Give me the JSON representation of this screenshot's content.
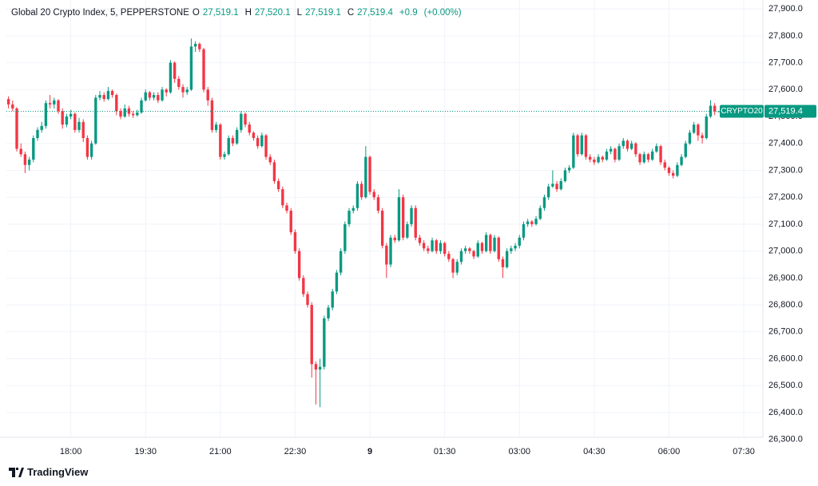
{
  "chart_data": {
    "type": "candlestick",
    "title": "Global 20 Crypto Index, 5, PEPPERSTONE",
    "header": [
      {
        "key": "O",
        "value": 27519.1,
        "label": "27,519.1"
      },
      {
        "key": "H",
        "value": 27520.1,
        "label": "27,520.1"
      },
      {
        "key": "L",
        "value": 27519.1,
        "label": "27,519.1"
      },
      {
        "key": "C",
        "value": 27519.4,
        "label": "27,519.4"
      }
    ],
    "change": {
      "value": 0.9,
      "label": "+0.9"
    },
    "change_pct": {
      "value": 0,
      "label": "(+0.00%)"
    },
    "symbol": "CRYPTO20",
    "last_price": {
      "value": 27519.4,
      "label": "27,519.4"
    },
    "brand": "TradingView",
    "up_color": "#089981",
    "down_color": "#f23645",
    "grid": true,
    "ylim": [
      26308,
      27933
    ],
    "yticks": [
      {
        "value": 27900,
        "label": "27,900.0"
      },
      {
        "value": 27800,
        "label": "27,800.0"
      },
      {
        "value": 27700,
        "label": "27,700.0"
      },
      {
        "value": 27600,
        "label": "27,600.0"
      },
      {
        "value": 27500,
        "label": "27,500.0"
      },
      {
        "value": 27400,
        "label": "27,400.0"
      },
      {
        "value": 27300,
        "label": "27,300.0"
      },
      {
        "value": 27200,
        "label": "27,200.0"
      },
      {
        "value": 27100,
        "label": "27,100.0"
      },
      {
        "value": 27000,
        "label": "27,000.0"
      },
      {
        "value": 26900,
        "label": "26,900.0"
      },
      {
        "value": 26800,
        "label": "26,800.0"
      },
      {
        "value": 26700,
        "label": "26,700.0"
      },
      {
        "value": 26600,
        "label": "26,600.0"
      },
      {
        "value": 26500,
        "label": "26,500.0"
      },
      {
        "value": 26400,
        "label": "26,400.0"
      },
      {
        "value": 26300,
        "label": "26,300.0"
      }
    ],
    "xlim": [
      -0.5,
      181.6
    ],
    "xticks": [
      {
        "value": 15,
        "label": "18:00"
      },
      {
        "value": 33,
        "label": "19:30"
      },
      {
        "value": 51,
        "label": "21:00"
      },
      {
        "value": 69,
        "label": "22:30"
      },
      {
        "value": 87,
        "label": "9"
      },
      {
        "value": 105,
        "label": "01:30"
      },
      {
        "value": 123,
        "label": "03:00"
      },
      {
        "value": 141,
        "label": "04:30"
      },
      {
        "value": 159,
        "label": "06:00"
      },
      {
        "value": 177,
        "label": "07:30"
      }
    ],
    "ohlc": [
      [
        27565,
        27575,
        27530,
        27545
      ],
      [
        27545,
        27560,
        27520,
        27530
      ],
      [
        27530,
        27535,
        27370,
        27380
      ],
      [
        27380,
        27400,
        27350,
        27360
      ],
      [
        27360,
        27370,
        27290,
        27320
      ],
      [
        27320,
        27350,
        27300,
        27340
      ],
      [
        27340,
        27430,
        27330,
        27420
      ],
      [
        27420,
        27460,
        27410,
        27450
      ],
      [
        27450,
        27480,
        27440,
        27465
      ],
      [
        27465,
        27560,
        27455,
        27550
      ],
      [
        27550,
        27580,
        27530,
        27545
      ],
      [
        27545,
        27570,
        27530,
        27560
      ],
      [
        27560,
        27565,
        27510,
        27520
      ],
      [
        27520,
        27530,
        27455,
        27470
      ],
      [
        27470,
        27510,
        27460,
        27500
      ],
      [
        27500,
        27525,
        27490,
        27510
      ],
      [
        27510,
        27515,
        27440,
        27450
      ],
      [
        27450,
        27495,
        27440,
        27480
      ],
      [
        27480,
        27490,
        27405,
        27420
      ],
      [
        27420,
        27430,
        27340,
        27350
      ],
      [
        27350,
        27410,
        27340,
        27400
      ],
      [
        27400,
        27580,
        27395,
        27570
      ],
      [
        27570,
        27595,
        27560,
        27580
      ],
      [
        27580,
        27590,
        27555,
        27565
      ],
      [
        27565,
        27610,
        27560,
        27595
      ],
      [
        27595,
        27600,
        27570,
        27580
      ],
      [
        27580,
        27585,
        27505,
        27520
      ],
      [
        27520,
        27530,
        27490,
        27500
      ],
      [
        27500,
        27545,
        27495,
        27530
      ],
      [
        27530,
        27540,
        27500,
        27510
      ],
      [
        27510,
        27520,
        27495,
        27505
      ],
      [
        27505,
        27525,
        27500,
        27515
      ],
      [
        27515,
        27570,
        27510,
        27560
      ],
      [
        27560,
        27600,
        27555,
        27590
      ],
      [
        27590,
        27595,
        27560,
        27570
      ],
      [
        27570,
        27590,
        27560,
        27580
      ],
      [
        27580,
        27590,
        27550,
        27560
      ],
      [
        27560,
        27610,
        27555,
        27600
      ],
      [
        27600,
        27605,
        27575,
        27590
      ],
      [
        27590,
        27710,
        27585,
        27700
      ],
      [
        27700,
        27705,
        27625,
        27640
      ],
      [
        27640,
        27650,
        27600,
        27610
      ],
      [
        27610,
        27620,
        27570,
        27590
      ],
      [
        27590,
        27610,
        27580,
        27600
      ],
      [
        27600,
        27790,
        27595,
        27760
      ],
      [
        27760,
        27780,
        27740,
        27770
      ],
      [
        27770,
        27775,
        27740,
        27750
      ],
      [
        27750,
        27755,
        27590,
        27600
      ],
      [
        27600,
        27610,
        27540,
        27560
      ],
      [
        27560,
        27570,
        27440,
        27450
      ],
      [
        27450,
        27480,
        27440,
        27470
      ],
      [
        27470,
        27475,
        27340,
        27350
      ],
      [
        27350,
        27370,
        27340,
        27360
      ],
      [
        27360,
        27430,
        27355,
        27420
      ],
      [
        27420,
        27430,
        27390,
        27400
      ],
      [
        27400,
        27460,
        27395,
        27450
      ],
      [
        27450,
        27520,
        27440,
        27510
      ],
      [
        27510,
        27515,
        27460,
        27470
      ],
      [
        27470,
        27480,
        27430,
        27440
      ],
      [
        27440,
        27445,
        27410,
        27420
      ],
      [
        27420,
        27430,
        27380,
        27390
      ],
      [
        27390,
        27440,
        27385,
        27430
      ],
      [
        27430,
        27435,
        27340,
        27350
      ],
      [
        27350,
        27360,
        27320,
        27330
      ],
      [
        27330,
        27340,
        27250,
        27260
      ],
      [
        27260,
        27270,
        27220,
        27230
      ],
      [
        27230,
        27240,
        27160,
        27170
      ],
      [
        27170,
        27180,
        27140,
        27150
      ],
      [
        27150,
        27160,
        27060,
        27070
      ],
      [
        27070,
        27080,
        26990,
        27000
      ],
      [
        27000,
        27010,
        26890,
        26900
      ],
      [
        26900,
        26910,
        26830,
        26840
      ],
      [
        26840,
        26850,
        26790,
        26800
      ],
      [
        26800,
        26810,
        26530,
        26580
      ],
      [
        26580,
        26590,
        26430,
        26560
      ],
      [
        26560,
        26600,
        26420,
        26570
      ],
      [
        26570,
        26760,
        26560,
        26750
      ],
      [
        26750,
        26800,
        26740,
        26790
      ],
      [
        26790,
        26860,
        26780,
        26850
      ],
      [
        26850,
        26930,
        26840,
        26920
      ],
      [
        26920,
        27010,
        26910,
        27000
      ],
      [
        27000,
        27110,
        26990,
        27100
      ],
      [
        27100,
        27160,
        27090,
        27150
      ],
      [
        27150,
        27170,
        27140,
        27160
      ],
      [
        27160,
        27260,
        27150,
        27250
      ],
      [
        27250,
        27260,
        27190,
        27200
      ],
      [
        27200,
        27390,
        27195,
        27350
      ],
      [
        27350,
        27355,
        27210,
        27220
      ],
      [
        27220,
        27230,
        27190,
        27200
      ],
      [
        27200,
        27210,
        27140,
        27150
      ],
      [
        27150,
        27160,
        27010,
        27020
      ],
      [
        27020,
        27030,
        26900,
        26950
      ],
      [
        26950,
        27060,
        26940,
        27050
      ],
      [
        27050,
        27060,
        27030,
        27040
      ],
      [
        27040,
        27230,
        27035,
        27200
      ],
      [
        27200,
        27210,
        27040,
        27050
      ],
      [
        27050,
        27110,
        27045,
        27100
      ],
      [
        27100,
        27170,
        27090,
        27160
      ],
      [
        27160,
        27170,
        27040,
        27050
      ],
      [
        27050,
        27060,
        27020,
        27030
      ],
      [
        27030,
        27040,
        27000,
        27010
      ],
      [
        27010,
        27020,
        26990,
        27000
      ],
      [
        27000,
        27050,
        26995,
        27040
      ],
      [
        27040,
        27045,
        26990,
        27000
      ],
      [
        27000,
        27040,
        26990,
        27030
      ],
      [
        27030,
        27035,
        26980,
        26990
      ],
      [
        26990,
        27000,
        26960,
        26970
      ],
      [
        26970,
        26975,
        26900,
        26920
      ],
      [
        26920,
        26970,
        26910,
        26960
      ],
      [
        26960,
        27010,
        26950,
        27000
      ],
      [
        27000,
        27020,
        26990,
        27010
      ],
      [
        27010,
        27015,
        26990,
        27000
      ],
      [
        27000,
        27005,
        26970,
        26980
      ],
      [
        26980,
        27040,
        26975,
        27030
      ],
      [
        27030,
        27035,
        26990,
        27000
      ],
      [
        27000,
        27070,
        26995,
        27060
      ],
      [
        27060,
        27065,
        26990,
        27000
      ],
      [
        27000,
        27060,
        26995,
        27050
      ],
      [
        27050,
        27055,
        26960,
        26970
      ],
      [
        26970,
        26980,
        26900,
        26940
      ],
      [
        26940,
        27010,
        26935,
        27000
      ],
      [
        27000,
        27020,
        26990,
        27010
      ],
      [
        27010,
        27030,
        27000,
        27020
      ],
      [
        27020,
        27060,
        27010,
        27050
      ],
      [
        27050,
        27110,
        27040,
        27100
      ],
      [
        27100,
        27120,
        27090,
        27110
      ],
      [
        27110,
        27115,
        27090,
        27100
      ],
      [
        27100,
        27130,
        27095,
        27120
      ],
      [
        27120,
        27170,
        27115,
        27160
      ],
      [
        27160,
        27210,
        27150,
        27200
      ],
      [
        27200,
        27250,
        27190,
        27240
      ],
      [
        27240,
        27300,
        27235,
        27250
      ],
      [
        27250,
        27260,
        27220,
        27230
      ],
      [
        27230,
        27270,
        27225,
        27260
      ],
      [
        27260,
        27310,
        27255,
        27300
      ],
      [
        27300,
        27320,
        27290,
        27310
      ],
      [
        27310,
        27440,
        27305,
        27430
      ],
      [
        27430,
        27435,
        27350,
        27360
      ],
      [
        27360,
        27440,
        27355,
        27430
      ],
      [
        27430,
        27435,
        27340,
        27350
      ],
      [
        27350,
        27360,
        27330,
        27340
      ],
      [
        27340,
        27350,
        27320,
        27330
      ],
      [
        27330,
        27360,
        27325,
        27350
      ],
      [
        27350,
        27355,
        27330,
        27340
      ],
      [
        27340,
        27380,
        27335,
        27370
      ],
      [
        27370,
        27390,
        27360,
        27380
      ],
      [
        27380,
        27385,
        27330,
        27340
      ],
      [
        27340,
        27400,
        27335,
        27390
      ],
      [
        27390,
        27420,
        27380,
        27410
      ],
      [
        27410,
        27415,
        27370,
        27380
      ],
      [
        27380,
        27410,
        27375,
        27400
      ],
      [
        27400,
        27405,
        27350,
        27360
      ],
      [
        27360,
        27365,
        27320,
        27330
      ],
      [
        27330,
        27370,
        27325,
        27360
      ],
      [
        27360,
        27365,
        27330,
        27340
      ],
      [
        27340,
        27380,
        27335,
        27370
      ],
      [
        27370,
        27400,
        27365,
        27390
      ],
      [
        27390,
        27395,
        27320,
        27330
      ],
      [
        27330,
        27340,
        27300,
        27310
      ],
      [
        27310,
        27315,
        27280,
        27290
      ],
      [
        27290,
        27300,
        27270,
        27280
      ],
      [
        27280,
        27330,
        27275,
        27320
      ],
      [
        27320,
        27360,
        27315,
        27350
      ],
      [
        27350,
        27410,
        27345,
        27400
      ],
      [
        27400,
        27450,
        27395,
        27440
      ],
      [
        27440,
        27480,
        27435,
        27470
      ],
      [
        27470,
        27475,
        27410,
        27430
      ],
      [
        27430,
        27440,
        27400,
        27420
      ],
      [
        27420,
        27510,
        27415,
        27500
      ],
      [
        27500,
        27560,
        27495,
        27540
      ],
      [
        27540,
        27550,
        27505,
        27519.1
      ],
      [
        27519.1,
        27520.1,
        27519.1,
        27519.4
      ]
    ]
  }
}
